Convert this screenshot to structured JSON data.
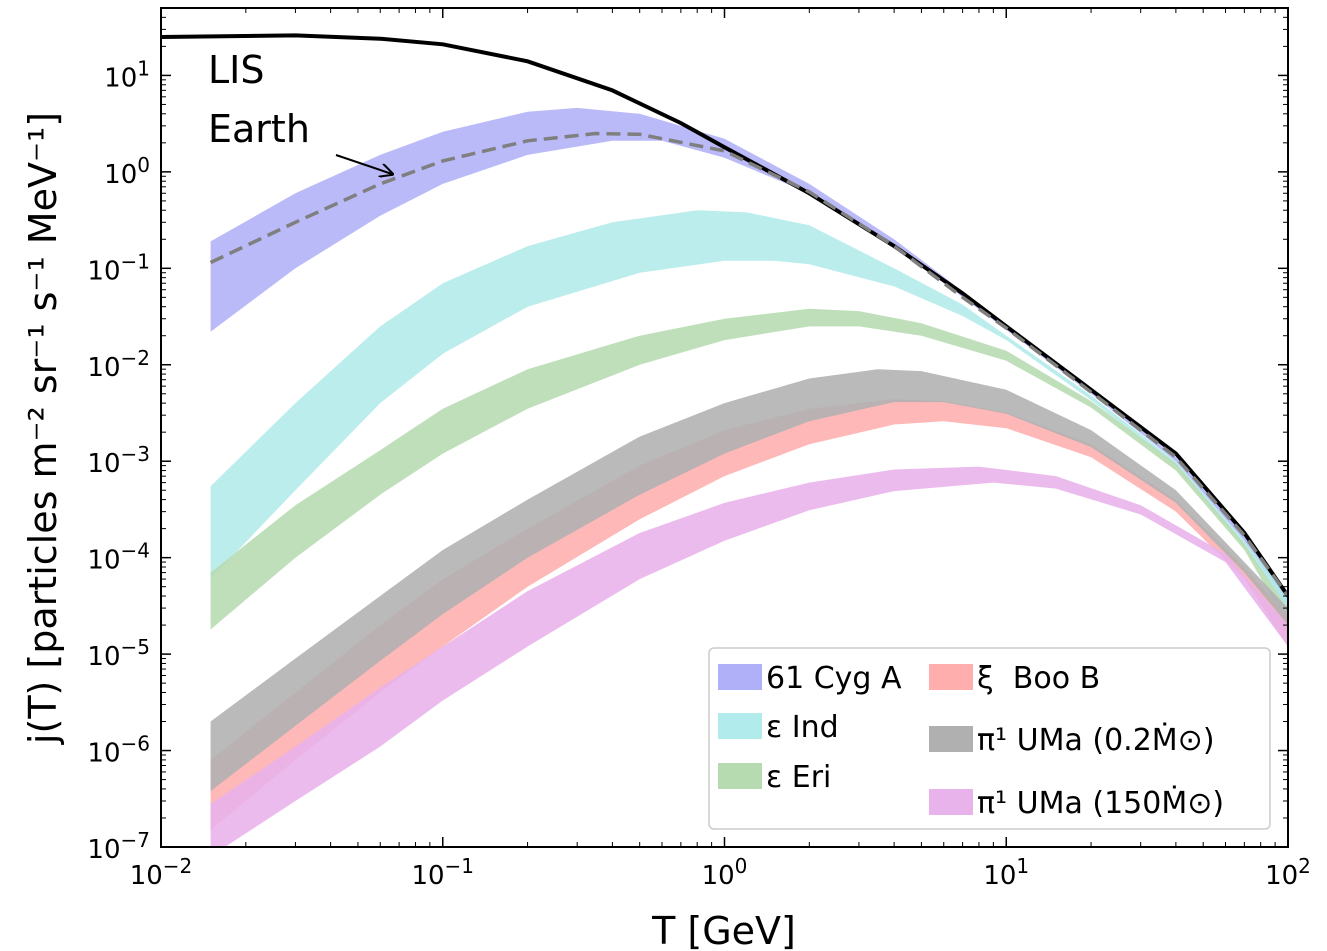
{
  "chart_data": {
    "type": "area",
    "xscale": "log",
    "yscale": "log",
    "xlim": [
      0.01,
      100
    ],
    "ylim": [
      1e-07,
      50
    ],
    "xlabel": "T [GeV]",
    "ylabel": "j(T) [particles m⁻² sr⁻¹ s⁻¹ MeV⁻¹]",
    "x_ticks": [
      {
        "value": 0.01,
        "base": "10",
        "exp": "−2"
      },
      {
        "value": 0.1,
        "base": "10",
        "exp": "−1"
      },
      {
        "value": 1,
        "base": "10",
        "exp": "0"
      },
      {
        "value": 10,
        "base": "10",
        "exp": "1"
      },
      {
        "value": 100,
        "base": "10",
        "exp": "2"
      }
    ],
    "y_ticks": [
      {
        "value": 1e-07,
        "base": "10",
        "exp": "−7"
      },
      {
        "value": 1e-06,
        "base": "10",
        "exp": "−6"
      },
      {
        "value": 1e-05,
        "base": "10",
        "exp": "−5"
      },
      {
        "value": 0.0001,
        "base": "10",
        "exp": "−4"
      },
      {
        "value": 0.001,
        "base": "10",
        "exp": "−3"
      },
      {
        "value": 0.01,
        "base": "10",
        "exp": "−2"
      },
      {
        "value": 0.1,
        "base": "10",
        "exp": "−1"
      },
      {
        "value": 1,
        "base": "10",
        "exp": "0"
      },
      {
        "value": 10,
        "base": "10",
        "exp": "1"
      }
    ],
    "annotations": [
      {
        "text": "LIS"
      },
      {
        "text": "Earth"
      }
    ],
    "lines": [
      {
        "name": "LIS",
        "color": "#000000",
        "style": "solid",
        "points": [
          [
            0.01,
            25
          ],
          [
            0.03,
            26
          ],
          [
            0.06,
            24
          ],
          [
            0.1,
            21
          ],
          [
            0.2,
            14
          ],
          [
            0.4,
            7
          ],
          [
            0.7,
            3.2
          ],
          [
            1,
            1.8
          ],
          [
            2,
            0.6
          ],
          [
            4,
            0.17
          ],
          [
            7,
            0.055
          ],
          [
            10,
            0.025
          ],
          [
            20,
            0.0055
          ],
          [
            40,
            0.0012
          ],
          [
            70,
            0.00018
          ],
          [
            100,
            4e-05
          ]
        ]
      },
      {
        "name": "Earth",
        "color": "#7f7f7f",
        "style": "dashed",
        "points": [
          [
            0.015,
            0.115
          ],
          [
            0.03,
            0.3
          ],
          [
            0.06,
            0.75
          ],
          [
            0.1,
            1.3
          ],
          [
            0.2,
            2.1
          ],
          [
            0.35,
            2.5
          ],
          [
            0.5,
            2.45
          ],
          [
            1,
            1.65
          ],
          [
            2,
            0.62
          ],
          [
            4,
            0.17
          ],
          [
            7,
            0.05
          ],
          [
            10,
            0.024
          ],
          [
            20,
            0.0052
          ],
          [
            40,
            0.0011
          ],
          [
            70,
            0.00017
          ],
          [
            100,
            4e-05
          ]
        ]
      }
    ],
    "bands": [
      {
        "name": "61 Cyg A",
        "color": "#b0b0f8",
        "upper": [
          [
            0.015,
            0.19
          ],
          [
            0.03,
            0.6
          ],
          [
            0.06,
            1.5
          ],
          [
            0.1,
            2.6
          ],
          [
            0.2,
            4.2
          ],
          [
            0.3,
            4.6
          ],
          [
            0.5,
            4.0
          ],
          [
            1,
            2.2
          ],
          [
            2,
            0.75
          ],
          [
            4,
            0.2
          ],
          [
            7,
            0.058
          ],
          [
            10,
            0.025
          ],
          [
            20,
            0.0054
          ],
          [
            40,
            0.0011
          ],
          [
            70,
            0.00017
          ],
          [
            100,
            4e-05
          ]
        ],
        "lower": [
          [
            0.015,
            0.022
          ],
          [
            0.03,
            0.1
          ],
          [
            0.06,
            0.35
          ],
          [
            0.1,
            0.75
          ],
          [
            0.2,
            1.5
          ],
          [
            0.4,
            2.1
          ],
          [
            0.6,
            2.1
          ],
          [
            1,
            1.4
          ],
          [
            2,
            0.6
          ],
          [
            4,
            0.17
          ],
          [
            7,
            0.05
          ],
          [
            10,
            0.023
          ],
          [
            20,
            0.005
          ],
          [
            40,
            0.001
          ],
          [
            70,
            0.00015
          ],
          [
            100,
            3e-05
          ]
        ]
      },
      {
        "name": "ε Ind",
        "color": "#b2ebeb",
        "upper": [
          [
            0.015,
            0.00055
          ],
          [
            0.03,
            0.004
          ],
          [
            0.06,
            0.025
          ],
          [
            0.1,
            0.07
          ],
          [
            0.2,
            0.17
          ],
          [
            0.4,
            0.3
          ],
          [
            0.8,
            0.4
          ],
          [
            1.2,
            0.38
          ],
          [
            2,
            0.28
          ],
          [
            4,
            0.1
          ],
          [
            7,
            0.042
          ],
          [
            10,
            0.02
          ],
          [
            20,
            0.0048
          ],
          [
            40,
            0.001
          ],
          [
            70,
            0.00015
          ],
          [
            100,
            4e-05
          ]
        ],
        "lower": [
          [
            0.015,
            6e-05
          ],
          [
            0.03,
            0.0005
          ],
          [
            0.06,
            0.004
          ],
          [
            0.1,
            0.013
          ],
          [
            0.2,
            0.04
          ],
          [
            0.5,
            0.09
          ],
          [
            1,
            0.12
          ],
          [
            1.5,
            0.12
          ],
          [
            2,
            0.11
          ],
          [
            4,
            0.065
          ],
          [
            7,
            0.032
          ],
          [
            10,
            0.018
          ],
          [
            20,
            0.0043
          ],
          [
            40,
            0.0009
          ],
          [
            70,
            0.00013
          ],
          [
            100,
            3e-05
          ]
        ]
      },
      {
        "name": "ε Eri",
        "color": "#b6dbb1",
        "upper": [
          [
            0.015,
            7e-05
          ],
          [
            0.03,
            0.00035
          ],
          [
            0.06,
            0.0013
          ],
          [
            0.1,
            0.0035
          ],
          [
            0.2,
            0.009
          ],
          [
            0.5,
            0.02
          ],
          [
            1,
            0.03
          ],
          [
            2,
            0.038
          ],
          [
            3,
            0.036
          ],
          [
            5,
            0.027
          ],
          [
            10,
            0.014
          ],
          [
            20,
            0.0042
          ],
          [
            40,
            0.00095
          ],
          [
            70,
            0.00014
          ],
          [
            100,
            3e-05
          ]
        ],
        "lower": [
          [
            0.015,
            1.8e-05
          ],
          [
            0.03,
            0.0001
          ],
          [
            0.06,
            0.00045
          ],
          [
            0.1,
            0.0012
          ],
          [
            0.2,
            0.0035
          ],
          [
            0.5,
            0.01
          ],
          [
            1,
            0.018
          ],
          [
            2,
            0.025
          ],
          [
            3,
            0.025
          ],
          [
            5,
            0.02
          ],
          [
            10,
            0.011
          ],
          [
            20,
            0.0036
          ],
          [
            40,
            0.0008
          ],
          [
            70,
            0.00012
          ],
          [
            100,
            2e-05
          ]
        ]
      },
      {
        "name": "ξ Boo B",
        "color": "#ffaeae",
        "upper": [
          [
            0.015,
            8e-07
          ],
          [
            0.03,
            4e-06
          ],
          [
            0.06,
            2e-05
          ],
          [
            0.1,
            6e-05
          ],
          [
            0.2,
            0.0002
          ],
          [
            0.5,
            0.0009
          ],
          [
            1,
            0.0021
          ],
          [
            2,
            0.0035
          ],
          [
            4,
            0.0044
          ],
          [
            6,
            0.0042
          ],
          [
            10,
            0.0032
          ],
          [
            20,
            0.0015
          ],
          [
            40,
            0.0004
          ],
          [
            70,
            8e-05
          ],
          [
            100,
            2.5e-05
          ]
        ],
        "lower": [
          [
            0.015,
            1.5e-07
          ],
          [
            0.03,
            8e-07
          ],
          [
            0.06,
            4e-06
          ],
          [
            0.1,
            1.2e-05
          ],
          [
            0.2,
            5e-05
          ],
          [
            0.5,
            0.00025
          ],
          [
            1,
            0.0007
          ],
          [
            2,
            0.0015
          ],
          [
            4,
            0.0024
          ],
          [
            6,
            0.0026
          ],
          [
            10,
            0.0022
          ],
          [
            20,
            0.0011
          ],
          [
            40,
            0.0003
          ],
          [
            70,
            6e-05
          ],
          [
            100,
            1.2e-05
          ]
        ]
      },
      {
        "name": "π¹ UMa (0.2Ṁ⊙)",
        "color": "#b0b0b0",
        "upper": [
          [
            0.015,
            2e-06
          ],
          [
            0.03,
            9e-06
          ],
          [
            0.06,
            4e-05
          ],
          [
            0.1,
            0.00012
          ],
          [
            0.2,
            0.0004
          ],
          [
            0.5,
            0.0018
          ],
          [
            1,
            0.004
          ],
          [
            2,
            0.0072
          ],
          [
            3.5,
            0.009
          ],
          [
            5,
            0.0086
          ],
          [
            10,
            0.0055
          ],
          [
            20,
            0.0021
          ],
          [
            40,
            0.0005
          ],
          [
            70,
            9e-05
          ],
          [
            100,
            3e-05
          ]
        ],
        "lower": [
          [
            0.015,
            3.8e-07
          ],
          [
            0.03,
            1.8e-06
          ],
          [
            0.06,
            8.5e-06
          ],
          [
            0.1,
            2.6e-05
          ],
          [
            0.2,
            0.0001
          ],
          [
            0.5,
            0.00045
          ],
          [
            1,
            0.0012
          ],
          [
            2,
            0.0026
          ],
          [
            4,
            0.0041
          ],
          [
            6,
            0.0041
          ],
          [
            10,
            0.0031
          ],
          [
            20,
            0.0014
          ],
          [
            40,
            0.00037
          ],
          [
            70,
            7e-05
          ],
          [
            100,
            2e-05
          ]
        ]
      },
      {
        "name": "π¹ UMa (150Ṁ⊙)",
        "color": "#e8b2ea",
        "upper": [
          [
            0.015,
            2.8e-07
          ],
          [
            0.03,
            1.1e-06
          ],
          [
            0.06,
            4.5e-06
          ],
          [
            0.1,
            1.2e-05
          ],
          [
            0.2,
            4.5e-05
          ],
          [
            0.5,
            0.00018
          ],
          [
            1,
            0.00037
          ],
          [
            2,
            0.0006
          ],
          [
            4,
            0.00082
          ],
          [
            8,
            0.00088
          ],
          [
            15,
            0.0007
          ],
          [
            30,
            0.00035
          ],
          [
            60,
            0.00011
          ],
          [
            100,
            2e-05
          ]
        ],
        "lower": [
          [
            0.015,
            8e-08
          ],
          [
            0.03,
            3e-07
          ],
          [
            0.06,
            1.1e-06
          ],
          [
            0.1,
            3.3e-06
          ],
          [
            0.2,
            1.2e-05
          ],
          [
            0.5,
            6e-05
          ],
          [
            1,
            0.00015
          ],
          [
            2,
            0.00031
          ],
          [
            4,
            0.00049
          ],
          [
            9,
            0.0006
          ],
          [
            15,
            0.00052
          ],
          [
            30,
            0.00028
          ],
          [
            60,
            9e-05
          ],
          [
            100,
            1.2e-05
          ]
        ]
      }
    ],
    "legend": {
      "placement": "lower-right",
      "entries": [
        {
          "label": "61 Cyg A",
          "color": "#b0b0f8"
        },
        {
          "label": "ξ  Boo B",
          "color": "#ffaeae"
        },
        {
          "label": "ε Ind",
          "color": "#b2ebeb"
        },
        {
          "label": "π¹ UMa (0.2Ṁ⊙)",
          "color": "#b0b0b0"
        },
        {
          "label": "ε Eri",
          "color": "#b6dbb1"
        },
        {
          "label": "π¹ UMa (150Ṁ⊙)",
          "color": "#e8b2ea"
        }
      ]
    }
  }
}
